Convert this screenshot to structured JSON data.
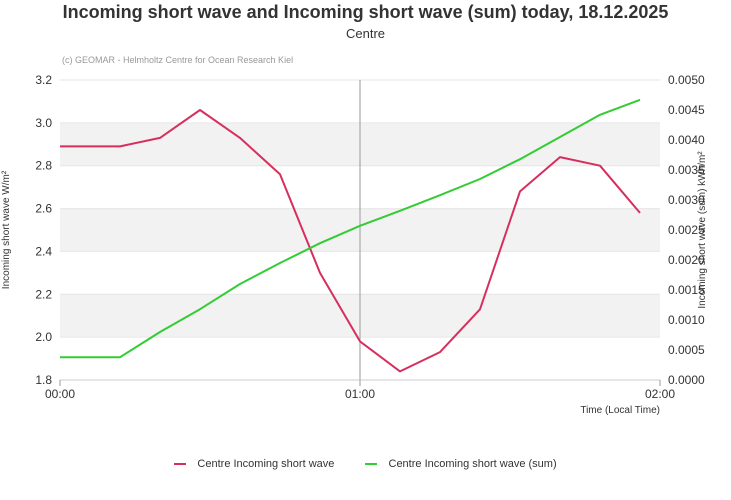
{
  "header": {
    "title": "Incoming short wave and Incoming short wave (sum) today, 18.12.2025",
    "subtitle": "Centre",
    "credit": "(c) GEOMAR - Helmholtz Centre for Ocean Research Kiel"
  },
  "chart_data": {
    "type": "line",
    "title": "Incoming short wave and Incoming short wave (sum) today, 18.12.2025",
    "subtitle": "Centre",
    "xlabel": "Time (Local Time)",
    "ylabel": "Incoming short wave W/m²",
    "y2label": "Incoming short wave (sum) kWh/m²",
    "x_ticks": [
      "00:00",
      "01:00",
      "02:00"
    ],
    "xlim": [
      "00:00",
      "02:00"
    ],
    "ylim": [
      1.8,
      3.2
    ],
    "y_ticks": [
      "1.8",
      "2.0",
      "2.2",
      "2.4",
      "2.6",
      "2.8",
      "3.0",
      "3.2"
    ],
    "y2lim": [
      0,
      0.005
    ],
    "y2_ticks": [
      "0.0000",
      "0.0005",
      "0.0010",
      "0.0015",
      "0.0020",
      "0.0025",
      "0.0030",
      "0.0035",
      "0.0040",
      "0.0045",
      "0.0050"
    ],
    "grid": "horizontal",
    "marker_line_x": "01:00",
    "legend_position": "bottom",
    "series": [
      {
        "name": "Centre Incoming short wave",
        "color": "#d62f5e",
        "axis": "left",
        "x": [
          "00:00",
          "00:12",
          "00:20",
          "00:28",
          "00:36",
          "00:44",
          "00:52",
          "01:00",
          "01:08",
          "01:16",
          "01:24",
          "01:32",
          "01:40",
          "01:48",
          "01:56"
        ],
        "values": [
          2.89,
          2.89,
          2.93,
          3.06,
          2.93,
          2.76,
          2.3,
          1.98,
          1.84,
          1.93,
          2.13,
          2.68,
          2.84,
          2.8,
          2.58
        ]
      },
      {
        "name": "Centre Incoming short wave (sum)",
        "color": "#33cc33",
        "axis": "right",
        "x": [
          "00:00",
          "00:12",
          "00:20",
          "00:28",
          "00:36",
          "00:44",
          "00:52",
          "01:00",
          "01:08",
          "01:16",
          "01:24",
          "01:32",
          "01:40",
          "01:48",
          "01:56"
        ],
        "values": [
          0.00038,
          0.00038,
          0.0008,
          0.00118,
          0.0016,
          0.00195,
          0.00228,
          0.00257,
          0.00282,
          0.00308,
          0.00335,
          0.00368,
          0.00405,
          0.00442,
          0.00467
        ]
      }
    ]
  }
}
